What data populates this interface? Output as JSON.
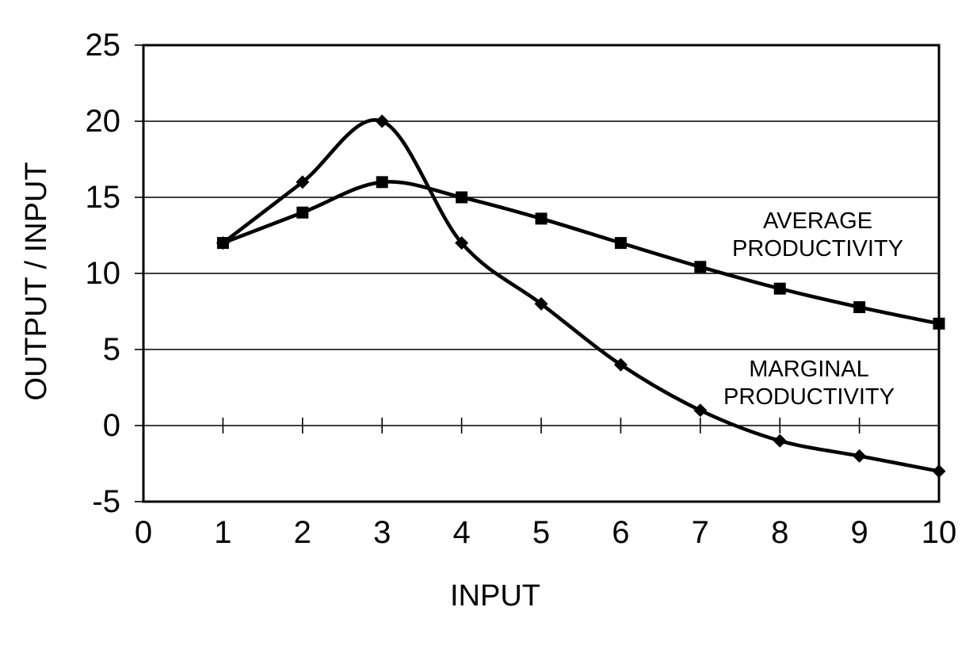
{
  "chart_data": {
    "type": "line",
    "title": "",
    "xlabel": "INPUT",
    "ylabel": "OUTPUT / INPUT",
    "x": [
      1,
      2,
      3,
      4,
      5,
      6,
      7,
      8,
      9,
      10
    ],
    "series": [
      {
        "name": "MARGINAL PRODUCTIVITY",
        "marker": "diamond",
        "values": [
          12,
          16,
          20,
          12,
          8,
          4,
          1,
          -1,
          -2,
          -3
        ]
      },
      {
        "name": "AVERAGE PRODUCTIVITY",
        "marker": "square",
        "values": [
          12,
          14,
          16,
          15,
          13.6,
          12,
          10.43,
          9,
          7.78,
          6.7
        ]
      }
    ],
    "xlim": [
      0,
      10
    ],
    "ylim": [
      -5,
      25
    ],
    "x_ticks": [
      0,
      1,
      2,
      3,
      4,
      5,
      6,
      7,
      8,
      9,
      10
    ],
    "x_tick_labels": [
      "0",
      "1",
      "2",
      "3",
      "4",
      "5",
      "6",
      "7",
      "8",
      "9",
      "10"
    ],
    "y_ticks": [
      -5,
      0,
      5,
      10,
      15,
      20,
      25
    ],
    "y_tick_labels": [
      "-5",
      "0",
      "5",
      "10",
      "15",
      "20",
      "25"
    ],
    "grid": "horizontal",
    "smooth_lines": true,
    "line_color": "#000000",
    "background_color": "#ffffff",
    "legend_position": "inline-annotations",
    "x_axis_cross_at": 0
  }
}
